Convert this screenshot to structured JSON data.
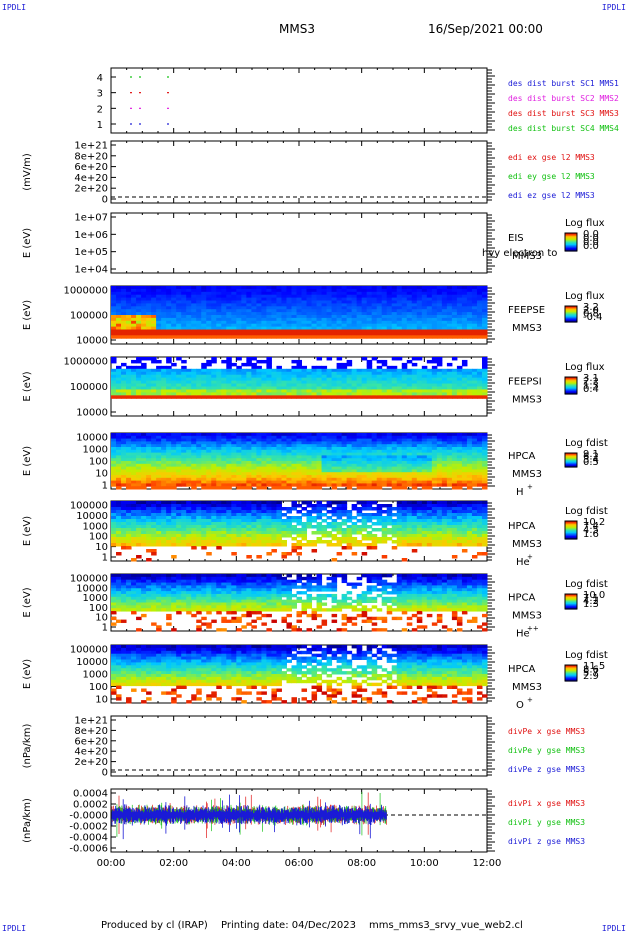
{
  "corners": {
    "tl": "IPDLI",
    "tr": "IPDLI",
    "bl": "IPDLI",
    "br": "IPDLI"
  },
  "header": {
    "spacecraft": "MMS3",
    "date": "16/Sep/2021 00:00"
  },
  "footer": {
    "produced": "Produced by cl (IRAP)",
    "printing": "Printing date: 04/Dec/2023",
    "file": "mms_mms3_srvy_vue_web2.cl"
  },
  "xaxis": {
    "ticks": [
      "00:00",
      "02:00",
      "04:00",
      "06:00",
      "08:00",
      "10:00",
      "12:00"
    ]
  },
  "panels": {
    "p1": {
      "ticks": [
        "4",
        "3",
        "2",
        "1"
      ],
      "legend": [
        {
          "text": "des dist burst SC1 MMS1",
          "color": "#1a1ad6"
        },
        {
          "text": "des dist burst SC2 MMS2",
          "color": "#e020e0"
        },
        {
          "text": "des dist burst SC3 MMS3",
          "color": "#e01010"
        },
        {
          "text": "des dist burst SC4 MMS4",
          "color": "#10c010"
        }
      ]
    },
    "p2": {
      "ylabel": "(mV/m)",
      "ticks": [
        "1e+21",
        "8e+20",
        "6e+20",
        "4e+20",
        "2e+20",
        "0"
      ],
      "legend": [
        {
          "text": "edi ex gse l2 MMS3",
          "color": "#e01010"
        },
        {
          "text": "edi ey gse l2 MMS3",
          "color": "#10c010"
        },
        {
          "text": "edi ez gse l2 MMS3",
          "color": "#1a1ad6"
        }
      ]
    },
    "p3": {
      "ylabel": "E (eV)",
      "ticks": [
        "1e+07",
        "1e+06",
        "1e+05",
        "1e+04"
      ],
      "inst": "EIS",
      "sc": "MMS3",
      "overlay": "hvy electron to",
      "cb_title": "Log flux",
      "cb_values": [
        "0.0",
        "0.0",
        "0.0",
        "0.0"
      ]
    },
    "p4": {
      "ylabel": "E (eV)",
      "ticks": [
        "1000000",
        "100000",
        "10000"
      ],
      "inst": "FEEPSE",
      "sc": "MMS3",
      "cb_title": "Log flux",
      "cb_values": [
        "3.2",
        "2.0",
        "0.8",
        "-0.4"
      ]
    },
    "p5": {
      "ylabel": "E (eV)",
      "ticks": [
        "1000000",
        "100000",
        "10000"
      ],
      "inst": "FEEPSI",
      "sc": "MMS3",
      "cb_title": "Log flux",
      "cb_values": [
        "3.1",
        "2.2",
        "1.3",
        "0.4"
      ]
    },
    "p6": {
      "ylabel": "E (eV)",
      "ticks": [
        "10000",
        "1000",
        "100",
        "10",
        "1"
      ],
      "inst": "HPCA",
      "sc": "MMS3",
      "species": "H",
      "charge": "+",
      "cb_title": "Log fdist",
      "cb_values": [
        "9.1",
        "6.2",
        "3.4",
        "0.5"
      ]
    },
    "p7": {
      "ylabel": "E (eV)",
      "ticks": [
        "100000",
        "10000",
        "1000",
        "100",
        "10",
        "1"
      ],
      "inst": "HPCA",
      "sc": "MMS3",
      "species": "He",
      "charge": "+",
      "cb_title": "Log fdist",
      "cb_values": [
        "10.2",
        "7.4",
        "4.5",
        "1.6"
      ]
    },
    "p8": {
      "ylabel": "E (eV)",
      "ticks": [
        "100000",
        "10000",
        "1000",
        "100",
        "10",
        "1"
      ],
      "inst": "HPCA",
      "sc": "MMS3",
      "species": "He",
      "charge": "++",
      "cb_title": "Log fdist",
      "cb_values": [
        "10.0",
        "7.1",
        "4.2",
        "1.3"
      ]
    },
    "p9": {
      "ylabel": "E (eV)",
      "ticks": [
        "100000",
        "10000",
        "1000",
        "100",
        "10"
      ],
      "inst": "HPCA",
      "sc": "MMS3",
      "species": "O",
      "charge": "+",
      "cb_title": "Log fdist",
      "cb_values": [
        "11.5",
        "8.6",
        "5.7",
        "2.9"
      ]
    },
    "p10": {
      "ylabel": "(nPa/km)",
      "ticks": [
        "1e+21",
        "8e+20",
        "6e+20",
        "4e+20",
        "2e+20",
        "0"
      ],
      "legend": [
        {
          "text": "divPe x gse MMS3",
          "color": "#e01010"
        },
        {
          "text": "divPe y gse MMS3",
          "color": "#10c010"
        },
        {
          "text": "divPe z gse MMS3",
          "color": "#1a1ad6"
        }
      ]
    },
    "p11": {
      "ylabel": "(nPa/km)",
      "ticks": [
        "0.0004",
        "0.0002",
        "-0.0000",
        "-0.0002",
        "-0.0004",
        "-0.0006"
      ],
      "legend": [
        {
          "text": "divPi x gse MMS3",
          "color": "#e01010"
        },
        {
          "text": "divPi y gse MMS3",
          "color": "#10c010"
        },
        {
          "text": "divPi z gse MMS3",
          "color": "#1a1ad6"
        }
      ]
    }
  },
  "chart_data": {
    "type": "heatmap",
    "title": "MMS3 16/Sep/2021 00:00",
    "x_range": [
      "00:00",
      "12:00"
    ],
    "panels": [
      {
        "name": "des dist burst",
        "y_ticks": [
          1,
          2,
          3,
          4
        ],
        "series": [
          "des dist burst SC1 MMS1",
          "des dist burst SC2 MMS2",
          "des dist burst SC3 MMS3",
          "des dist burst SC4 MMS4"
        ]
      },
      {
        "name": "edi e gse",
        "ylabel": "(mV/m)",
        "ylim": [
          0,
          1e+21
        ],
        "series": [
          "edi ex gse l2 MMS3",
          "edi ey gse l2 MMS3",
          "edi ez gse l2 MMS3"
        ]
      },
      {
        "name": "EIS",
        "ylabel": "E (eV)",
        "ylim": [
          10000.0,
          10000000.0
        ],
        "colorbar": [
          0.0,
          0.0,
          0.0,
          0.0
        ]
      },
      {
        "name": "FEEPSE",
        "ylabel": "E (eV)",
        "ylim": [
          10000.0,
          1000000.0
        ],
        "colorbar": [
          3.2,
          2.0,
          0.8,
          -0.4
        ]
      },
      {
        "name": "FEEPSI",
        "ylabel": "E (eV)",
        "ylim": [
          10000.0,
          1000000.0
        ],
        "colorbar": [
          3.1,
          2.2,
          1.3,
          0.4
        ]
      },
      {
        "name": "HPCA H+",
        "ylabel": "E (eV)",
        "ylim": [
          1,
          10000.0
        ],
        "colorbar": [
          9.1,
          6.2,
          3.4,
          0.5
        ]
      },
      {
        "name": "HPCA He+",
        "ylabel": "E (eV)",
        "ylim": [
          1,
          100000.0
        ],
        "colorbar": [
          10.2,
          7.4,
          4.5,
          1.6
        ]
      },
      {
        "name": "HPCA He++",
        "ylabel": "E (eV)",
        "ylim": [
          1,
          100000.0
        ],
        "colorbar": [
          10.0,
          7.1,
          4.2,
          1.3
        ]
      },
      {
        "name": "HPCA O+",
        "ylabel": "E (eV)",
        "ylim": [
          10,
          100000.0
        ],
        "colorbar": [
          11.5,
          8.6,
          5.7,
          2.9
        ]
      },
      {
        "name": "divPe gse",
        "ylabel": "(nPa/km)",
        "ylim": [
          0,
          1e+21
        ],
        "series": [
          "divPe x gse MMS3",
          "divPe y gse MMS3",
          "divPe z gse MMS3"
        ]
      },
      {
        "name": "divPi gse",
        "ylabel": "(nPa/km)",
        "ylim": [
          -0.0006,
          0.0004
        ],
        "series": [
          "divPi x gse MMS3",
          "divPi y gse MMS3",
          "divPi z gse MMS3"
        ]
      }
    ]
  }
}
